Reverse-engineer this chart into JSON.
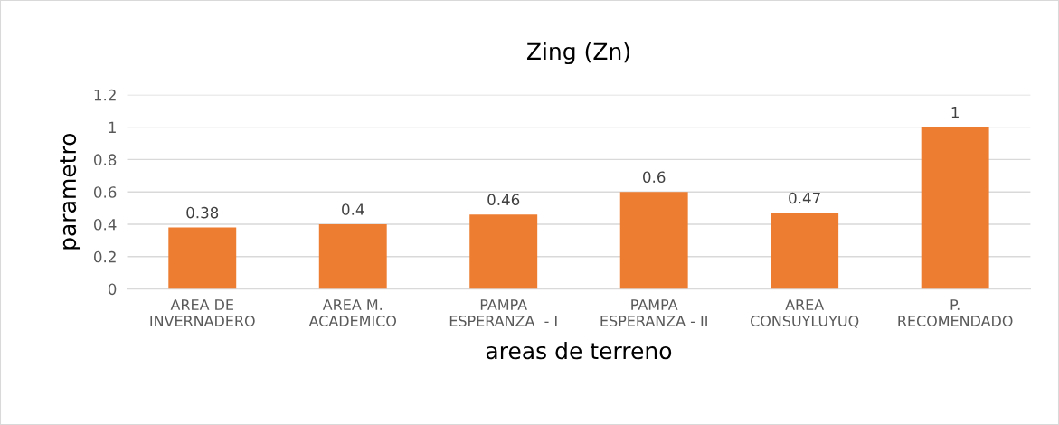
{
  "chart_data": {
    "type": "bar",
    "title": "Zing (Zn)",
    "xlabel": "areas de terreno",
    "ylabel": "parametro",
    "categories": [
      "AREA DE\nINVERNADERO",
      "AREA M.\nACADEMICO",
      "PAMPA\nESPERANZA  - I",
      "PAMPA\nESPERANZA - II",
      "AREA\nCONSUYLUYUQ",
      "P.\nRECOMENDADO"
    ],
    "values": [
      0.38,
      0.4,
      0.46,
      0.6,
      0.47,
      1
    ],
    "color": "#ed7d31",
    "ylim": [
      0,
      1.2
    ],
    "yticks": [
      0,
      0.2,
      0.4,
      0.6,
      0.8,
      1,
      1.2
    ],
    "grid": "y",
    "data_labels": true,
    "legend": false
  }
}
